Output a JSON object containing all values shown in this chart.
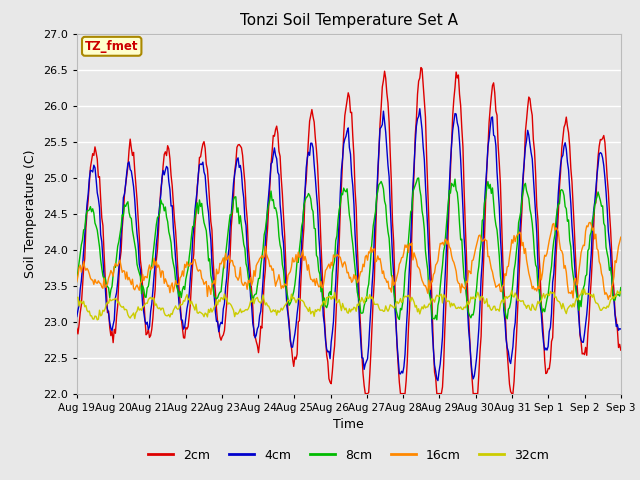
{
  "title": "Tonzi Soil Temperature Set A",
  "xlabel": "Time",
  "ylabel": "Soil Temperature (C)",
  "ylim": [
    22.0,
    27.0
  ],
  "yticks": [
    22.0,
    22.5,
    23.0,
    23.5,
    24.0,
    24.5,
    25.0,
    25.5,
    26.0,
    26.5,
    27.0
  ],
  "xtick_labels": [
    "Aug 19",
    "Aug 20",
    "Aug 21",
    "Aug 22",
    "Aug 23",
    "Aug 24",
    "Aug 25",
    "Aug 26",
    "Aug 27",
    "Aug 28",
    "Aug 29",
    "Aug 30",
    "Aug 31",
    "Sep 1",
    "Sep 2",
    "Sep 3"
  ],
  "line_colors": {
    "2cm": "#dd0000",
    "4cm": "#0000cc",
    "8cm": "#00bb00",
    "16cm": "#ff8800",
    "32cm": "#cccc00"
  },
  "legend_label": "TZ_fmet",
  "legend_box_color": "#ffffcc",
  "legend_box_edge": "#aa8800",
  "plot_bg_color": "#e8e8e8",
  "grid_color": "#ffffff",
  "n_points": 480
}
